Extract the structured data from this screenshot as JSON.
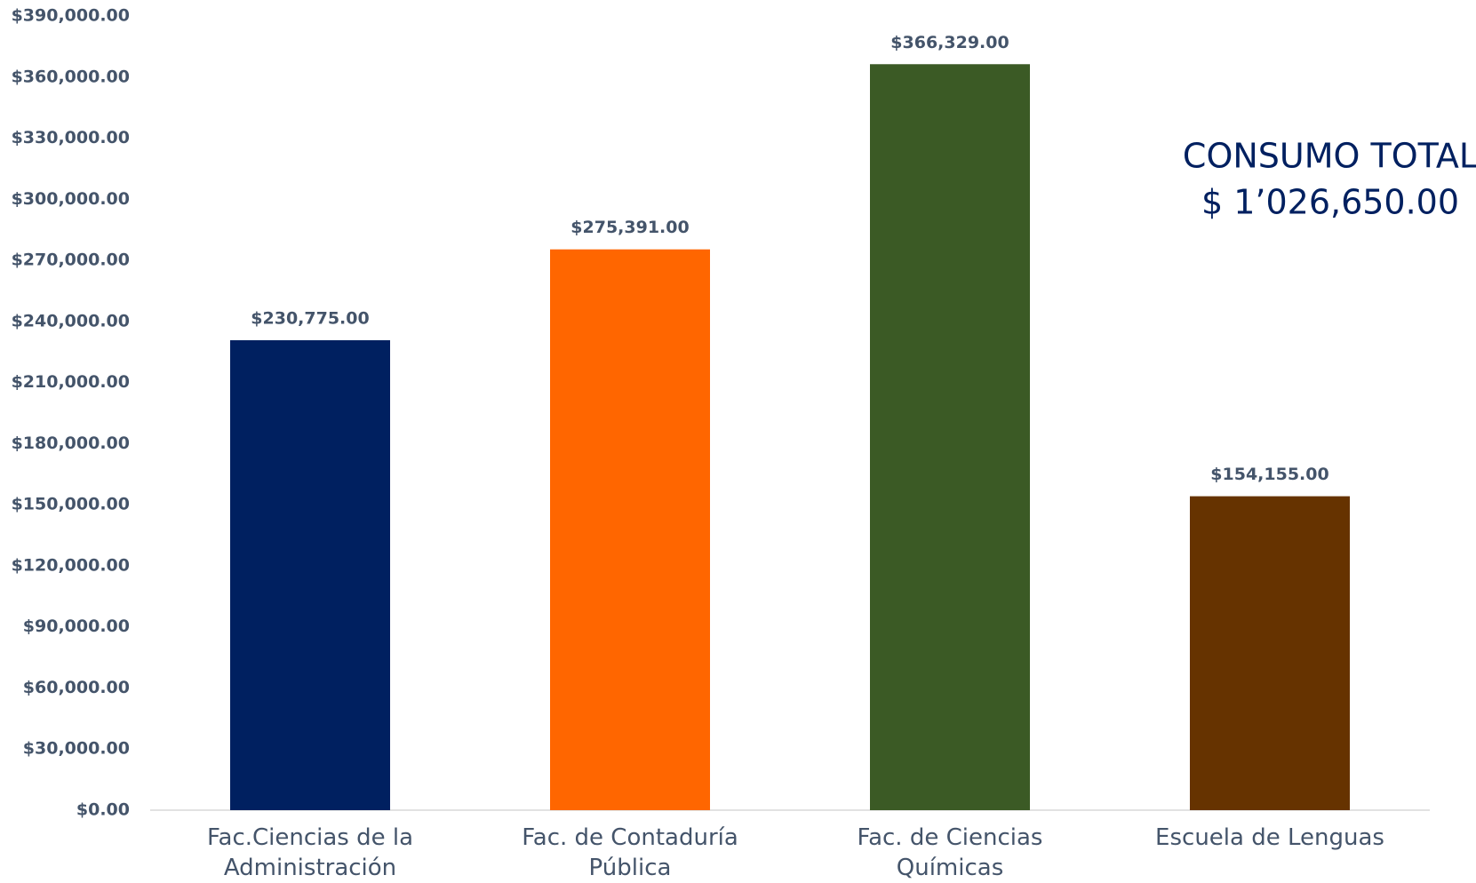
{
  "chart_data": {
    "type": "bar",
    "categories": [
      "Fac.Ciencias de la Administración",
      "Fac. de Contaduría Pública",
      "Fac. de Ciencias Químicas",
      "Escuela de Lenguas"
    ],
    "values": [
      230775,
      275391,
      366329,
      154155
    ],
    "value_labels": [
      "$230,775.00",
      "$275,391.00",
      "$366,329.00",
      "$154,155.00"
    ],
    "colors": [
      "#002060",
      "#ff6600",
      "#3b5a25",
      "#663300"
    ],
    "ylim": [
      0,
      390000
    ],
    "yticks": [
      {
        "value": 0,
        "label": "$0.00"
      },
      {
        "value": 30000,
        "label": "$30,000.00"
      },
      {
        "value": 60000,
        "label": "$60,000.00"
      },
      {
        "value": 90000,
        "label": "$90,000.00"
      },
      {
        "value": 120000,
        "label": "$120,000.00"
      },
      {
        "value": 150000,
        "label": "$150,000.00"
      },
      {
        "value": 180000,
        "label": "$180,000.00"
      },
      {
        "value": 210000,
        "label": "$210,000.00"
      },
      {
        "value": 240000,
        "label": "$240,000.00"
      },
      {
        "value": 270000,
        "label": "$270,000.00"
      },
      {
        "value": 300000,
        "label": "$300,000.00"
      },
      {
        "value": 330000,
        "label": "$330,000.00"
      },
      {
        "value": 360000,
        "label": "$360,000.00"
      },
      {
        "value": 390000,
        "label": "$390,000.00"
      }
    ],
    "grid": false,
    "annotations": [
      "CONSUMO TOTAL",
      "$ 1’026,650.00"
    ]
  }
}
